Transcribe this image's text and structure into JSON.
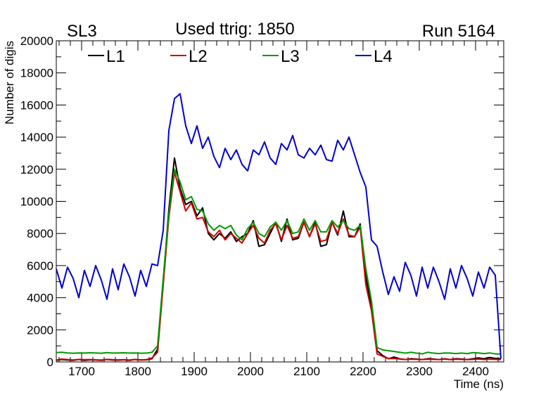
{
  "chart_data": {
    "type": "line",
    "title": "Used ttrig: 1850",
    "top_left_label": "SL3",
    "top_right_label": "Run 5164",
    "xlabel": "Time (ns)",
    "ylabel": "Number of digis",
    "xlim": [
      1655,
      2450
    ],
    "ylim": [
      0,
      20000
    ],
    "x_ticks": [
      1700,
      1800,
      1900,
      2000,
      2100,
      2200,
      2300,
      2400
    ],
    "y_ticks": [
      0,
      2000,
      4000,
      6000,
      8000,
      10000,
      12000,
      14000,
      16000,
      18000,
      20000
    ],
    "legend_position": "top",
    "x": [
      1655,
      1665,
      1675,
      1685,
      1695,
      1705,
      1715,
      1725,
      1735,
      1745,
      1755,
      1765,
      1775,
      1785,
      1795,
      1805,
      1815,
      1825,
      1835,
      1845,
      1855,
      1865,
      1875,
      1885,
      1895,
      1905,
      1915,
      1925,
      1935,
      1945,
      1955,
      1965,
      1975,
      1985,
      1995,
      2005,
      2015,
      2025,
      2035,
      2045,
      2055,
      2065,
      2075,
      2085,
      2095,
      2105,
      2115,
      2125,
      2135,
      2145,
      2155,
      2165,
      2175,
      2185,
      2195,
      2205,
      2215,
      2225,
      2235,
      2245,
      2255,
      2265,
      2275,
      2285,
      2295,
      2305,
      2315,
      2325,
      2335,
      2345,
      2355,
      2365,
      2375,
      2385,
      2395,
      2405,
      2415,
      2425,
      2435,
      2445
    ],
    "series": [
      {
        "name": "L1",
        "color": "#000000",
        "values": [
          100,
          150,
          120,
          100,
          150,
          100,
          130,
          120,
          100,
          150,
          120,
          110,
          130,
          100,
          150,
          120,
          130,
          200,
          800,
          5000,
          9500,
          12700,
          10800,
          9800,
          10000,
          9100,
          9600,
          8000,
          7600,
          8000,
          7700,
          8100,
          7500,
          7800,
          8000,
          8800,
          7200,
          7300,
          8000,
          8700,
          7500,
          8900,
          7600,
          7700,
          8700,
          7800,
          8700,
          7200,
          7300,
          8700,
          7900,
          9400,
          7800,
          7800,
          8600,
          5300,
          3500,
          700,
          400,
          200,
          300,
          200,
          150,
          200,
          180,
          150,
          200,
          180,
          150,
          200,
          150,
          200,
          180,
          150,
          200,
          250,
          200,
          280,
          220,
          200
        ]
      },
      {
        "name": "L2",
        "color": "#cc0000",
        "values": [
          120,
          180,
          150,
          120,
          160,
          140,
          150,
          130,
          120,
          160,
          140,
          130,
          140,
          120,
          160,
          130,
          140,
          250,
          600,
          4800,
          9000,
          11800,
          10600,
          9400,
          9900,
          8900,
          9000,
          8100,
          7800,
          8200,
          7600,
          8000,
          7700,
          7400,
          8000,
          8500,
          7700,
          7400,
          8200,
          8600,
          7600,
          8500,
          7700,
          7800,
          8700,
          7800,
          8600,
          7500,
          7600,
          8700,
          8000,
          8900,
          7900,
          7800,
          8400,
          4800,
          3200,
          500,
          350,
          200,
          220,
          180,
          150,
          170,
          160,
          150,
          170,
          160,
          150,
          180,
          140,
          170,
          160,
          140,
          160,
          180,
          150,
          170,
          160,
          140
        ]
      },
      {
        "name": "L3",
        "color": "#009900",
        "values": [
          580,
          600,
          560,
          540,
          560,
          550,
          570,
          560,
          540,
          580,
          550,
          560,
          570,
          550,
          560,
          540,
          550,
          600,
          1000,
          5200,
          9200,
          12000,
          11200,
          10100,
          10300,
          9500,
          9400,
          8600,
          8200,
          8500,
          8300,
          8500,
          7900,
          7600,
          8300,
          8700,
          8000,
          7800,
          8400,
          8700,
          8200,
          8800,
          8000,
          8100,
          8900,
          8200,
          8800,
          8100,
          8100,
          8800,
          8400,
          8800,
          8300,
          8200,
          8500,
          5800,
          3800,
          900,
          750,
          700,
          650,
          600,
          550,
          600,
          550,
          500,
          600,
          550,
          520,
          560,
          550,
          520,
          550,
          520,
          580,
          560,
          520,
          560,
          500,
          500
        ]
      },
      {
        "name": "L4",
        "color": "#0000cc",
        "values": [
          5800,
          4600,
          5900,
          5200,
          4000,
          5700,
          4700,
          6000,
          5100,
          3900,
          5800,
          4500,
          6100,
          5300,
          4100,
          5700,
          4700,
          6100,
          6000,
          8200,
          14400,
          16400,
          16700,
          14700,
          13600,
          14700,
          13300,
          14000,
          12800,
          12100,
          13300,
          12600,
          13200,
          12300,
          11900,
          13200,
          12900,
          13700,
          12700,
          12300,
          13600,
          13200,
          14100,
          12900,
          12700,
          13300,
          12900,
          13500,
          12600,
          12500,
          13800,
          13200,
          14000,
          12900,
          11800,
          10900,
          7600,
          7200,
          5600,
          4200,
          5300,
          4400,
          6200,
          5400,
          4100,
          5900,
          4600,
          5900,
          5000,
          3900,
          5800,
          4600,
          6000,
          5200,
          4100,
          5600,
          4600,
          5900,
          5400,
          200
        ]
      }
    ]
  }
}
